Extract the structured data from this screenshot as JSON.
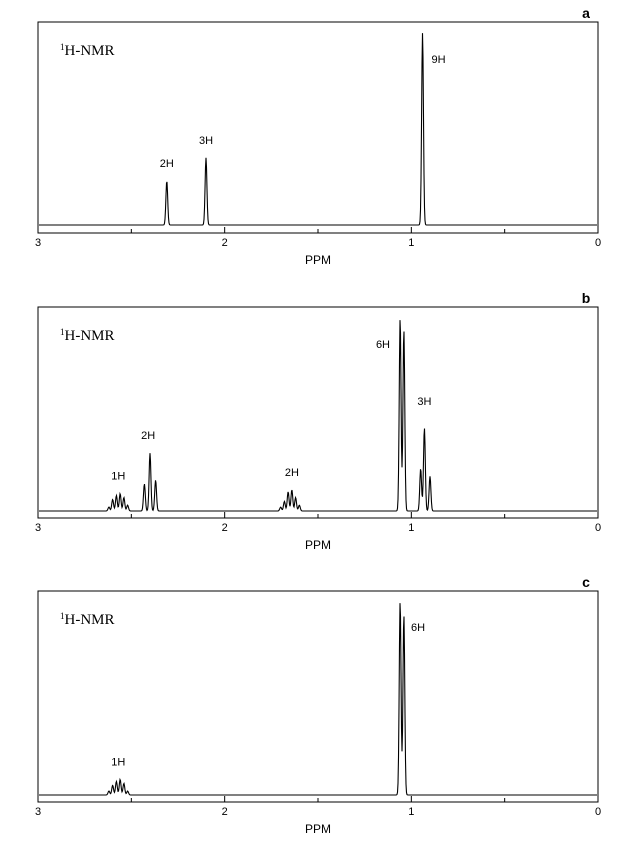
{
  "chart_data": [
    {
      "type": "line",
      "panel": "a",
      "title_prefix": "1",
      "title_main": "H-NMR",
      "xlabel": "PPM",
      "xlim": [
        3,
        0
      ],
      "x_reversed": true,
      "x_ticks": [
        "3",
        "2",
        "1",
        "0"
      ],
      "peaks": [
        {
          "ppm": 2.31,
          "height": 0.23
        },
        {
          "ppm": 2.1,
          "height": 0.35
        },
        {
          "ppm": 0.94,
          "height": 1.0
        }
      ],
      "annotations": [
        {
          "text": "2H",
          "ppm": 2.31
        },
        {
          "text": "3H",
          "ppm": 2.1
        },
        {
          "text": "9H",
          "ppm": 0.94
        }
      ]
    },
    {
      "type": "line",
      "panel": "b",
      "title_prefix": "1",
      "title_main": "H-NMR",
      "xlabel": "PPM",
      "xlim": [
        3,
        0
      ],
      "x_reversed": true,
      "x_ticks": [
        "3",
        "2",
        "1",
        "0"
      ],
      "peaks": [
        {
          "ppm": 2.62,
          "height": 0.02
        },
        {
          "ppm": 2.6,
          "height": 0.06
        },
        {
          "ppm": 2.58,
          "height": 0.08
        },
        {
          "ppm": 2.56,
          "height": 0.09
        },
        {
          "ppm": 2.54,
          "height": 0.07
        },
        {
          "ppm": 2.52,
          "height": 0.03
        },
        {
          "ppm": 2.43,
          "height": 0.14
        },
        {
          "ppm": 2.4,
          "height": 0.3
        },
        {
          "ppm": 2.37,
          "height": 0.16
        },
        {
          "ppm": 1.7,
          "height": 0.02
        },
        {
          "ppm": 1.68,
          "height": 0.05
        },
        {
          "ppm": 1.66,
          "height": 0.1
        },
        {
          "ppm": 1.64,
          "height": 0.11
        },
        {
          "ppm": 1.62,
          "height": 0.07
        },
        {
          "ppm": 1.6,
          "height": 0.03
        },
        {
          "ppm": 1.06,
          "height": 1.0
        },
        {
          "ppm": 1.04,
          "height": 0.94
        },
        {
          "ppm": 0.95,
          "height": 0.22
        },
        {
          "ppm": 0.93,
          "height": 0.43
        },
        {
          "ppm": 0.9,
          "height": 0.18
        }
      ],
      "annotations": [
        {
          "text": "1H",
          "ppm": 2.57
        },
        {
          "text": "2H",
          "ppm": 2.41
        },
        {
          "text": "2H",
          "ppm": 1.64
        },
        {
          "text": "6H",
          "ppm": 1.05
        },
        {
          "text": "3H",
          "ppm": 0.93
        }
      ]
    },
    {
      "type": "line",
      "panel": "c",
      "title_prefix": "1",
      "title_main": "H-NMR",
      "xlabel": "PPM",
      "xlim": [
        3,
        0
      ],
      "x_reversed": true,
      "x_ticks": [
        "3",
        "2",
        "1",
        "0"
      ],
      "peaks": [
        {
          "ppm": 2.62,
          "height": 0.02
        },
        {
          "ppm": 2.6,
          "height": 0.05
        },
        {
          "ppm": 2.58,
          "height": 0.07
        },
        {
          "ppm": 2.56,
          "height": 0.08
        },
        {
          "ppm": 2.54,
          "height": 0.06
        },
        {
          "ppm": 2.52,
          "height": 0.02
        },
        {
          "ppm": 1.06,
          "height": 1.0
        },
        {
          "ppm": 1.04,
          "height": 0.93
        }
      ],
      "annotations": [
        {
          "text": "1H",
          "ppm": 2.57
        },
        {
          "text": "6H",
          "ppm": 1.05
        }
      ]
    }
  ]
}
